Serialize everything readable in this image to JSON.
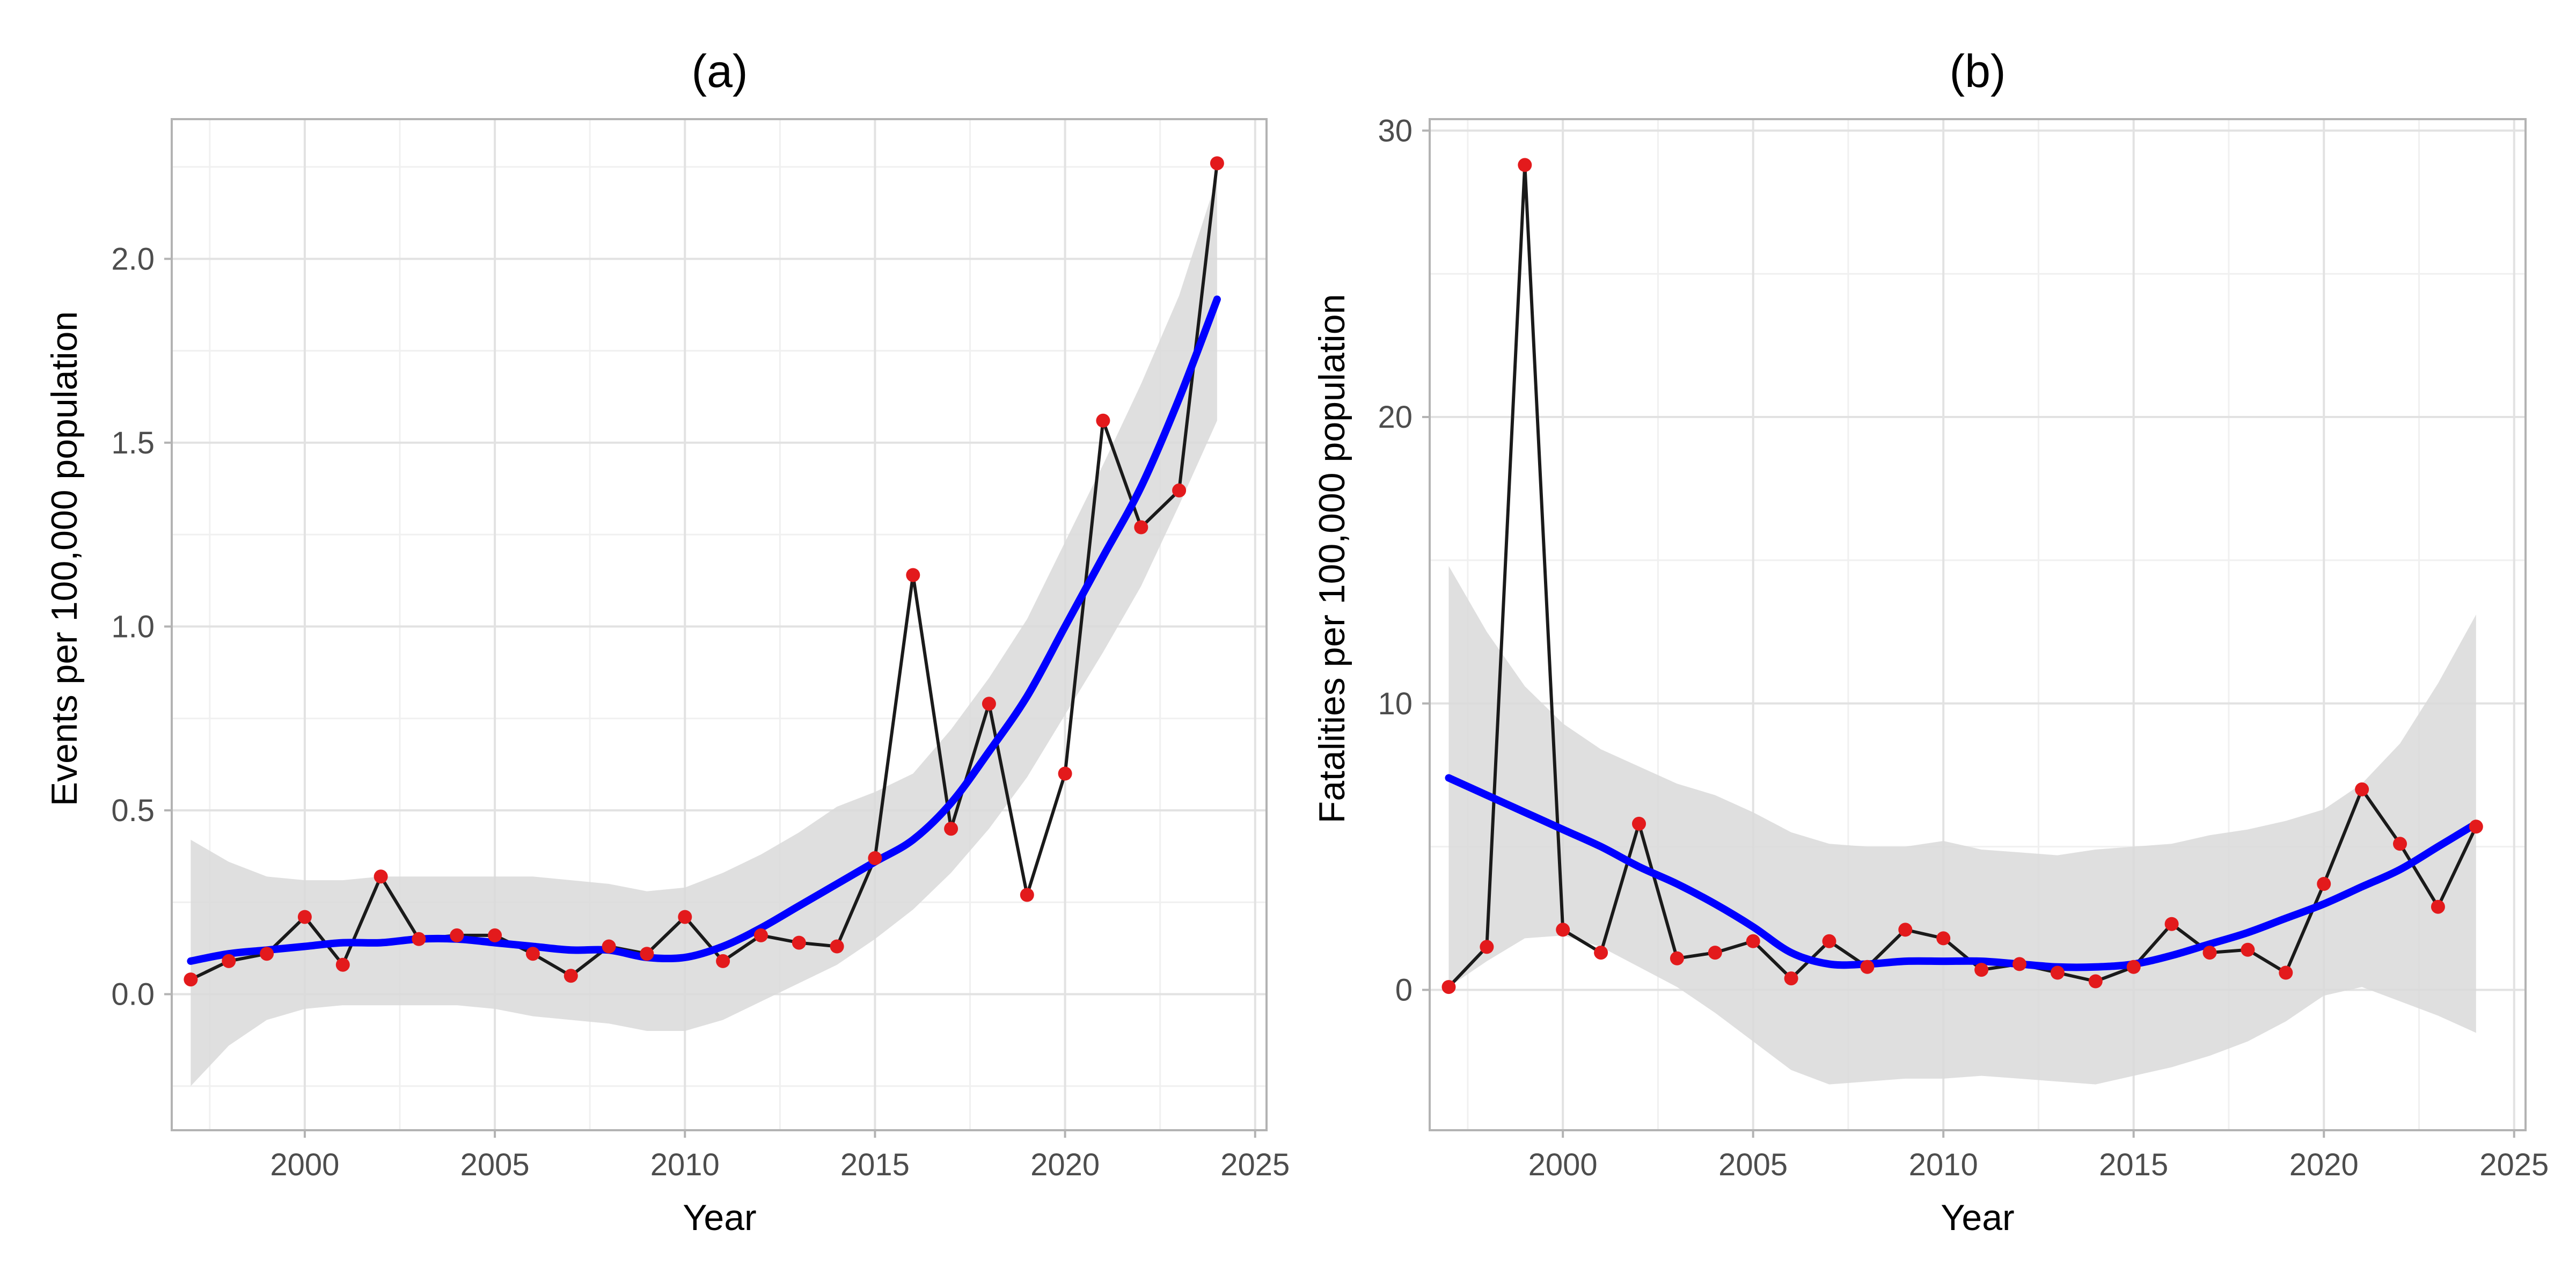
{
  "figure": {
    "smooth_color": "#0000ff",
    "line_color": "#1a1a1a",
    "point_color": "#e31a1c",
    "ribbon_color": "#d9d9d9"
  },
  "chart_data": [
    {
      "type": "line",
      "title": "(a)",
      "xlabel": "Year",
      "ylabel": "Events per 100,000 population",
      "xlim": [
        1996.5,
        2025.3
      ],
      "ylim": [
        -0.37,
        2.38
      ],
      "x_ticks": [
        2000,
        2005,
        2010,
        2015,
        2020,
        2025
      ],
      "x_tick_labels": [
        "2000",
        "2005",
        "2010",
        "2015",
        "2020",
        "2025"
      ],
      "y_ticks": [
        0,
        0.5,
        1,
        1.5,
        2
      ],
      "y_tick_labels": [
        "0.0",
        "0.5",
        "1.0",
        "1.5",
        "2.0"
      ],
      "grid": true,
      "x": [
        1997,
        1998,
        1999,
        2000,
        2001,
        2002,
        2003,
        2004,
        2005,
        2006,
        2007,
        2008,
        2009,
        2010,
        2011,
        2012,
        2013,
        2014,
        2015,
        2016,
        2017,
        2018,
        2019,
        2020,
        2021,
        2022,
        2023,
        2024
      ],
      "series": [
        {
          "name": "observed",
          "values": [
            0.04,
            0.09,
            0.11,
            0.21,
            0.08,
            0.32,
            0.15,
            0.16,
            0.16,
            0.11,
            0.05,
            0.13,
            0.11,
            0.21,
            0.09,
            0.16,
            0.14,
            0.13,
            0.37,
            1.14,
            0.45,
            0.79,
            0.27,
            0.6,
            1.56,
            1.27,
            1.37,
            2.26
          ]
        },
        {
          "name": "smooth",
          "values": [
            0.09,
            0.11,
            0.12,
            0.13,
            0.14,
            0.14,
            0.15,
            0.15,
            0.14,
            0.13,
            0.12,
            0.12,
            0.1,
            0.1,
            0.13,
            0.18,
            0.24,
            0.3,
            0.36,
            0.42,
            0.52,
            0.66,
            0.81,
            1.0,
            1.19,
            1.38,
            1.62,
            1.89
          ]
        },
        {
          "name": "ci_upper",
          "values": [
            0.42,
            0.36,
            0.32,
            0.31,
            0.31,
            0.32,
            0.32,
            0.32,
            0.32,
            0.32,
            0.31,
            0.3,
            0.28,
            0.29,
            0.33,
            0.38,
            0.44,
            0.51,
            0.55,
            0.6,
            0.72,
            0.86,
            1.02,
            1.23,
            1.44,
            1.66,
            1.9,
            2.22
          ]
        },
        {
          "name": "ci_lower",
          "values": [
            -0.25,
            -0.14,
            -0.07,
            -0.04,
            -0.03,
            -0.03,
            -0.03,
            -0.03,
            -0.04,
            -0.06,
            -0.07,
            -0.08,
            -0.1,
            -0.1,
            -0.07,
            -0.02,
            0.03,
            0.08,
            0.15,
            0.23,
            0.33,
            0.45,
            0.59,
            0.76,
            0.93,
            1.11,
            1.33,
            1.56
          ]
        }
      ]
    },
    {
      "type": "line",
      "title": "(b)",
      "xlabel": "Year",
      "ylabel": "Fatalities per 100,000 population",
      "xlim": [
        1996.5,
        2025.3
      ],
      "ylim": [
        -4.9,
        30.4
      ],
      "x_ticks": [
        2000,
        2005,
        2010,
        2015,
        2020,
        2025
      ],
      "x_tick_labels": [
        "2000",
        "2005",
        "2010",
        "2015",
        "2020",
        "2025"
      ],
      "y_ticks": [
        0,
        10,
        20,
        30
      ],
      "y_tick_labels": [
        "0",
        "10",
        "20",
        "30"
      ],
      "grid": true,
      "x": [
        1997,
        1998,
        1999,
        2000,
        2001,
        2002,
        2003,
        2004,
        2005,
        2006,
        2007,
        2008,
        2009,
        2010,
        2011,
        2012,
        2013,
        2014,
        2015,
        2016,
        2017,
        2018,
        2019,
        2020,
        2021,
        2022,
        2023,
        2024
      ],
      "series": [
        {
          "name": "observed",
          "values": [
            0.1,
            1.5,
            28.8,
            2.1,
            1.3,
            5.8,
            1.1,
            1.3,
            1.7,
            0.4,
            1.7,
            0.8,
            2.1,
            1.8,
            0.7,
            0.9,
            0.6,
            0.3,
            0.8,
            2.3,
            1.3,
            1.4,
            0.6,
            3.7,
            7.0,
            5.1,
            2.9,
            5.7
          ]
        },
        {
          "name": "smooth",
          "values": [
            7.4,
            6.8,
            6.2,
            5.6,
            5.0,
            4.3,
            3.7,
            3.0,
            2.2,
            1.3,
            0.9,
            0.9,
            1.0,
            1.0,
            1.0,
            0.9,
            0.8,
            0.8,
            0.9,
            1.2,
            1.6,
            2.0,
            2.5,
            3.0,
            3.6,
            4.2,
            5.0,
            5.8
          ]
        },
        {
          "name": "ci_upper",
          "values": [
            14.8,
            12.5,
            10.6,
            9.3,
            8.4,
            7.8,
            7.2,
            6.8,
            6.2,
            5.5,
            5.1,
            5.0,
            5.0,
            5.2,
            4.9,
            4.8,
            4.7,
            4.9,
            5.0,
            5.1,
            5.4,
            5.6,
            5.9,
            6.3,
            7.2,
            8.6,
            10.7,
            13.1
          ]
        },
        {
          "name": "ci_lower",
          "values": [
            0.1,
            1.0,
            1.8,
            1.9,
            1.5,
            0.8,
            0.1,
            -0.8,
            -1.8,
            -2.8,
            -3.3,
            -3.2,
            -3.1,
            -3.1,
            -3.0,
            -3.1,
            -3.2,
            -3.3,
            -3.0,
            -2.7,
            -2.3,
            -1.8,
            -1.1,
            -0.2,
            0.1,
            -0.4,
            -0.9,
            -1.5
          ]
        }
      ]
    }
  ]
}
